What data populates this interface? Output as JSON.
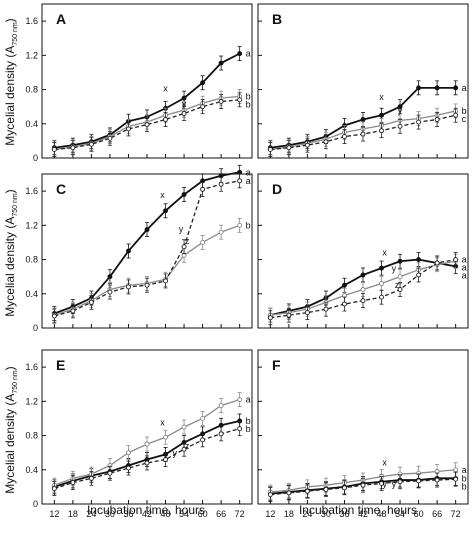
{
  "figure": {
    "ylabel_pre": "Mycelial density (A",
    "ylabel_sub": "750 nm",
    "ylabel_post": ")",
    "xlabel": "Incubation time, hours"
  },
  "chart_data": [
    {
      "type": "line",
      "panel": "A",
      "x": [
        12,
        18,
        24,
        30,
        36,
        42,
        48,
        54,
        60,
        66,
        72
      ],
      "xticks": [
        12,
        18,
        24,
        30,
        36,
        42,
        48,
        54,
        60,
        66,
        72
      ],
      "ylim": [
        0,
        1.8
      ],
      "yticks": [
        "0",
        "0.4",
        "0.8",
        "1.2",
        "1.6"
      ],
      "show_y_ticklabels": true,
      "show_x_ticklabels": false,
      "series": [
        {
          "style": "solid-black",
          "values": [
            0.12,
            0.15,
            0.19,
            0.27,
            0.43,
            0.48,
            0.58,
            0.7,
            0.88,
            1.11,
            1.22
          ],
          "end_label": "a"
        },
        {
          "style": "solid-gray",
          "values": [
            0.1,
            0.13,
            0.17,
            0.25,
            0.37,
            0.42,
            0.5,
            0.56,
            0.64,
            0.7,
            0.72
          ],
          "end_label": "b"
        },
        {
          "style": "dashed",
          "values": [
            0.1,
            0.12,
            0.16,
            0.23,
            0.34,
            0.39,
            0.45,
            0.52,
            0.6,
            0.66,
            0.68
          ],
          "end_label": "b"
        }
      ],
      "annotations": [
        {
          "text": "x",
          "x": 48,
          "y": 0.78
        },
        {
          "text": "y",
          "x": 54,
          "y": 0.6
        }
      ]
    },
    {
      "type": "line",
      "panel": "B",
      "x": [
        12,
        18,
        24,
        30,
        36,
        42,
        48,
        54,
        60,
        66,
        72
      ],
      "xticks": [
        12,
        18,
        24,
        30,
        36,
        42,
        48,
        54,
        60,
        66,
        72
      ],
      "ylim": [
        0,
        1.8
      ],
      "yticks": [],
      "show_y_ticklabels": false,
      "show_x_ticklabels": false,
      "series": [
        {
          "style": "solid-black",
          "values": [
            0.12,
            0.15,
            0.19,
            0.25,
            0.38,
            0.45,
            0.5,
            0.6,
            0.82,
            0.82,
            0.82
          ],
          "end_label": "a"
        },
        {
          "style": "solid-gray",
          "values": [
            0.1,
            0.13,
            0.17,
            0.22,
            0.3,
            0.34,
            0.38,
            0.44,
            0.46,
            0.5,
            0.55
          ],
          "end_label": "b"
        },
        {
          "style": "dashed",
          "values": [
            0.1,
            0.12,
            0.15,
            0.19,
            0.25,
            0.28,
            0.32,
            0.37,
            0.42,
            0.45,
            0.5
          ],
          "end_label": "c"
        }
      ],
      "annotations": [
        {
          "text": "x",
          "x": 48,
          "y": 0.68
        },
        {
          "text": "y",
          "x": 54,
          "y": 0.52
        }
      ]
    },
    {
      "type": "line",
      "panel": "C",
      "x": [
        12,
        18,
        24,
        30,
        36,
        42,
        48,
        54,
        60,
        66,
        72
      ],
      "xticks": [
        12,
        18,
        24,
        30,
        36,
        42,
        48,
        54,
        60,
        66,
        72
      ],
      "ylim": [
        0,
        1.8
      ],
      "yticks": [
        "0",
        "0.4",
        "0.8",
        "1.2",
        "1.6"
      ],
      "show_y_ticklabels": true,
      "show_x_ticklabels": false,
      "series": [
        {
          "style": "solid-black",
          "values": [
            0.17,
            0.25,
            0.35,
            0.6,
            0.9,
            1.15,
            1.37,
            1.56,
            1.72,
            1.78,
            1.82
          ],
          "end_label": "a"
        },
        {
          "style": "solid-gray",
          "values": [
            0.15,
            0.22,
            0.32,
            0.45,
            0.5,
            0.52,
            0.57,
            0.85,
            1.0,
            1.12,
            1.2
          ],
          "end_label": "b"
        },
        {
          "style": "dashed",
          "values": [
            0.14,
            0.2,
            0.3,
            0.42,
            0.48,
            0.5,
            0.55,
            0.95,
            1.62,
            1.68,
            1.72
          ],
          "end_label": "a"
        }
      ],
      "annotations": [
        {
          "text": "x",
          "x": 47,
          "y": 1.52
        },
        {
          "text": "y",
          "x": 53,
          "y": 1.12
        },
        {
          "text": "z",
          "x": 55,
          "y": 0.98
        }
      ]
    },
    {
      "type": "line",
      "panel": "D",
      "x": [
        12,
        18,
        24,
        30,
        36,
        42,
        48,
        54,
        60,
        66,
        72
      ],
      "xticks": [
        12,
        18,
        24,
        30,
        36,
        42,
        48,
        54,
        60,
        66,
        72
      ],
      "ylim": [
        0,
        1.8
      ],
      "yticks": [],
      "show_y_ticklabels": false,
      "show_x_ticklabels": false,
      "series": [
        {
          "style": "solid-black",
          "values": [
            0.15,
            0.2,
            0.25,
            0.35,
            0.5,
            0.62,
            0.7,
            0.78,
            0.8,
            0.76,
            0.72
          ],
          "end_label": "a"
        },
        {
          "style": "solid-gray",
          "values": [
            0.15,
            0.18,
            0.22,
            0.3,
            0.38,
            0.45,
            0.52,
            0.6,
            0.68,
            0.74,
            0.78
          ],
          "end_label": "a"
        },
        {
          "style": "dashed",
          "values": [
            0.12,
            0.15,
            0.18,
            0.22,
            0.28,
            0.32,
            0.36,
            0.45,
            0.62,
            0.76,
            0.8
          ],
          "end_label": "a"
        }
      ],
      "annotations": [
        {
          "text": "x",
          "x": 49,
          "y": 0.85
        },
        {
          "text": "y",
          "x": 52,
          "y": 0.66
        },
        {
          "text": "z",
          "x": 53,
          "y": 0.47
        }
      ]
    },
    {
      "type": "line",
      "panel": "E",
      "x": [
        12,
        18,
        24,
        30,
        36,
        42,
        48,
        54,
        60,
        66,
        72
      ],
      "xticks": [
        12,
        18,
        24,
        30,
        36,
        42,
        48,
        54,
        60,
        66,
        72
      ],
      "ylim": [
        0,
        1.8
      ],
      "yticks": [
        "0",
        "0.4",
        "0.8",
        "1.2",
        "1.6"
      ],
      "show_y_ticklabels": true,
      "show_x_ticklabels": true,
      "series": [
        {
          "style": "solid-black",
          "values": [
            0.2,
            0.27,
            0.33,
            0.38,
            0.45,
            0.52,
            0.58,
            0.72,
            0.82,
            0.92,
            0.97
          ],
          "end_label": "b"
        },
        {
          "style": "solid-gray",
          "values": [
            0.22,
            0.3,
            0.35,
            0.45,
            0.6,
            0.7,
            0.78,
            0.9,
            1.0,
            1.15,
            1.22
          ],
          "end_label": "a"
        },
        {
          "style": "dashed",
          "values": [
            0.18,
            0.25,
            0.3,
            0.36,
            0.42,
            0.48,
            0.52,
            0.64,
            0.75,
            0.82,
            0.88
          ],
          "end_label": "b"
        }
      ],
      "annotations": [
        {
          "text": "x",
          "x": 47,
          "y": 0.92
        },
        {
          "text": "y",
          "x": 51,
          "y": 0.56
        },
        {
          "text": "z",
          "x": 55,
          "y": 0.64
        }
      ]
    },
    {
      "type": "line",
      "panel": "F",
      "x": [
        12,
        18,
        24,
        30,
        36,
        42,
        48,
        54,
        60,
        66,
        72
      ],
      "xticks": [
        12,
        18,
        24,
        30,
        36,
        42,
        48,
        54,
        60,
        66,
        72
      ],
      "ylim": [
        0,
        1.8
      ],
      "yticks": [],
      "show_y_ticklabels": false,
      "show_x_ticklabels": true,
      "series": [
        {
          "style": "solid-black",
          "values": [
            0.12,
            0.14,
            0.16,
            0.18,
            0.2,
            0.24,
            0.26,
            0.28,
            0.28,
            0.3,
            0.3
          ],
          "end_label": "b"
        },
        {
          "style": "solid-gray",
          "values": [
            0.14,
            0.16,
            0.2,
            0.22,
            0.25,
            0.28,
            0.32,
            0.35,
            0.36,
            0.38,
            0.4
          ],
          "end_label": "a"
        },
        {
          "style": "dashed",
          "values": [
            0.11,
            0.13,
            0.15,
            0.17,
            0.19,
            0.22,
            0.24,
            0.26,
            0.27,
            0.28,
            0.29
          ],
          "end_label": "b"
        }
      ],
      "annotations": [
        {
          "text": "x",
          "x": 49,
          "y": 0.45
        },
        {
          "text": "y",
          "x": 49,
          "y": 0.2
        },
        {
          "text": "y",
          "x": 52,
          "y": 0.2
        }
      ]
    }
  ]
}
